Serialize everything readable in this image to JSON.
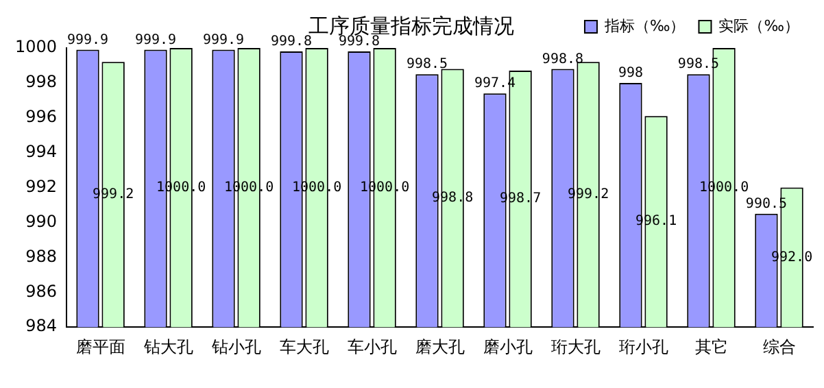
{
  "chart_data": {
    "type": "bar",
    "title": "工序质量指标完成情况",
    "categories": [
      "磨平面",
      "钻大孔",
      "钻小孔",
      "车大孔",
      "车小孔",
      "磨大孔",
      "磨小孔",
      "珩大孔",
      "珩小孔",
      "其它",
      "综合"
    ],
    "series": [
      {
        "name": "指标（‰）",
        "color": "#9999ff",
        "values": [
          999.9,
          999.9,
          999.9,
          999.8,
          999.8,
          998.5,
          997.4,
          998.8,
          998,
          998.5,
          990.5
        ],
        "value_labels": [
          "999.9",
          "999.9",
          "999.9",
          "999.8",
          "999.8",
          "998.5",
          "997.4",
          "998.8",
          "998",
          "998.5",
          "990.5"
        ]
      },
      {
        "name": "实际（‰）",
        "color": "#ccffcc",
        "values": [
          999.2,
          1000,
          1000,
          1000,
          1000,
          998.8,
          998.7,
          999.2,
          996.1,
          1000,
          992
        ],
        "value_labels": [
          "999.2",
          "1000.0",
          "1000.0",
          "1000.0",
          "1000.0",
          "998.8",
          "998.7",
          "999.2",
          "996.1",
          "1000.0",
          "992.0"
        ]
      }
    ],
    "ylim": [
      984,
      1000
    ],
    "yticks": [
      984,
      986,
      988,
      990,
      992,
      994,
      996,
      998,
      1000
    ],
    "grid": false,
    "legend": "top right"
  }
}
